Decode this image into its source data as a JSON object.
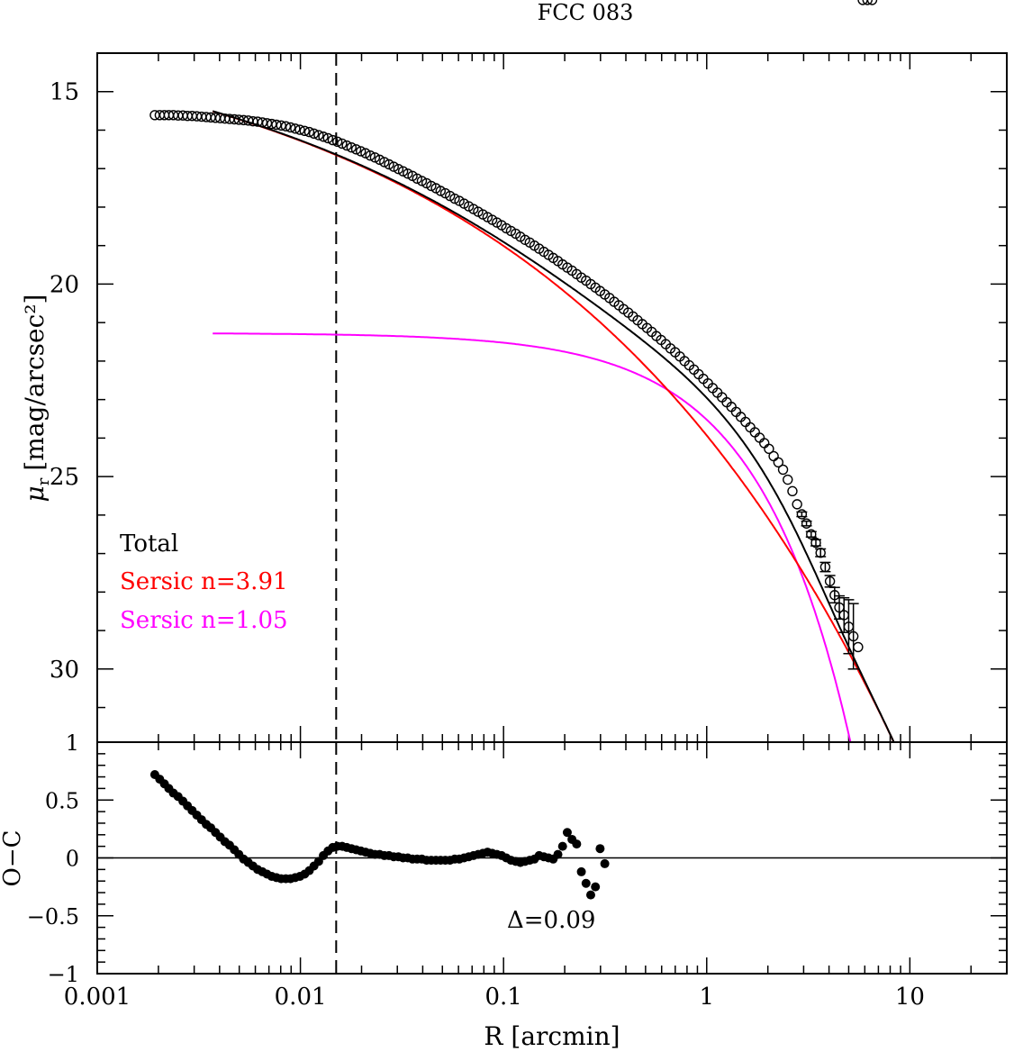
{
  "chart_data": [
    {
      "type": "line",
      "title": "FCC 083",
      "xlabel": "R [arcmin]",
      "ylabel_main": "μ",
      "ylabel_sub": "r",
      "ylabel_rest": "[mag/arcsec²]",
      "xscale": "log",
      "xlim": [
        0.001,
        30
      ],
      "ylim": [
        31.9,
        14.0
      ],
      "y_ticks_major": [
        15,
        20,
        25,
        30
      ],
      "y_tick_labels": [
        "15",
        "20",
        "25",
        "30"
      ],
      "vline_R": 0.015,
      "legend": {
        "placement": "lower-left",
        "entries": [
          {
            "label": "Total",
            "color": "#000000"
          },
          {
            "label": "Sersic n=3.91",
            "color": "#ff0000"
          },
          {
            "label": "Sersic n=1.05",
            "color": "#ff00ff"
          }
        ]
      },
      "series": [
        {
          "name": "Total",
          "color": "#000000",
          "Rmin": 0.0037,
          "Rmax": 10
        },
        {
          "name": "Sersic n=3.91",
          "color": "#ff0000",
          "n": 3.91,
          "mu_e": 21.0,
          "R_e": 0.3,
          "Rmin": 0.0037,
          "Rmax": 10
        },
        {
          "name": "Sersic n=1.05",
          "color": "#ff00ff",
          "n": 1.05,
          "mu_e": 23.2,
          "R_e": 0.85,
          "Rmin": 0.0037,
          "Rmax": 6.8
        }
      ],
      "observed": {
        "name": "data",
        "R": [
          0.00192,
          0.00203,
          0.00214,
          0.00225,
          0.00237,
          0.0025,
          0.00264,
          0.00278,
          0.00293,
          0.00309,
          0.00326,
          0.00344,
          0.00362,
          0.00382,
          0.00403,
          0.00425,
          0.00448,
          0.00473,
          0.00498,
          0.00525,
          0.00554,
          0.00584,
          0.00616,
          0.0065,
          0.00685,
          0.00723,
          0.00762,
          0.00804,
          0.00848,
          0.00894,
          0.00943,
          0.00994,
          0.01049,
          0.01106,
          0.01166,
          0.0123,
          0.01297,
          0.01368,
          0.01442,
          0.01521,
          0.01604,
          0.01692,
          0.01784,
          0.01882,
          0.01984,
          0.02093,
          0.02207,
          0.02328,
          0.02455,
          0.02589,
          0.0273,
          0.02879,
          0.03037,
          0.03202,
          0.03377,
          0.03562,
          0.03756,
          0.03962,
          0.04178,
          0.04406,
          0.04647,
          0.049,
          0.05168,
          0.0545,
          0.05748,
          0.06061,
          0.06393,
          0.06742,
          0.0711,
          0.07498,
          0.07908,
          0.08339,
          0.08795,
          0.09275,
          0.09781,
          0.10315,
          0.10879,
          0.11473,
          0.12099,
          0.1276,
          0.13457,
          0.14191,
          0.14966,
          0.15783,
          0.16645,
          0.17554,
          0.18513,
          0.19523,
          0.20589,
          0.21714,
          0.22899,
          0.2415,
          0.25468,
          0.26859,
          0.28325,
          0.29872,
          0.31503,
          0.33223,
          0.35037,
          0.3695,
          0.38968,
          0.41095,
          0.43339,
          0.45706,
          0.48201,
          0.50833,
          0.53609,
          0.56536,
          0.59623,
          0.62879,
          0.66312,
          0.69933,
          0.73751,
          0.77778,
          0.82025,
          0.86504,
          0.91227,
          0.96208,
          1.0146,
          1.07,
          1.1284,
          1.19,
          1.255,
          1.3235,
          1.3958,
          1.472,
          1.5524,
          1.6372,
          1.7265,
          1.8208,
          1.9202,
          2.0251,
          2.1356,
          2.2522,
          2.3752,
          2.5049,
          2.6417,
          2.7859,
          2.938,
          3.0985,
          3.2676,
          3.446,
          3.6342,
          3.8326,
          4.0418,
          4.2625,
          4.4953,
          4.7407,
          4.9995,
          5.2725,
          5.5604,
          5.864,
          6.1842,
          6.5218
        ],
        "mu": [
          15.61,
          15.61,
          15.61,
          15.61,
          15.61,
          15.62,
          15.62,
          15.63,
          15.63,
          15.64,
          15.65,
          15.66,
          15.67,
          15.68,
          15.69,
          15.7,
          15.71,
          15.72,
          15.73,
          15.74,
          15.75,
          15.77,
          15.78,
          15.8,
          15.82,
          15.84,
          15.86,
          15.88,
          15.9,
          15.93,
          15.96,
          15.99,
          16.02,
          16.05,
          16.09,
          16.13,
          16.17,
          16.21,
          16.26,
          16.3,
          16.35,
          16.4,
          16.45,
          16.5,
          16.55,
          16.6,
          16.66,
          16.71,
          16.77,
          16.83,
          16.89,
          16.95,
          17.01,
          17.07,
          17.13,
          17.19,
          17.26,
          17.32,
          17.38,
          17.45,
          17.51,
          17.58,
          17.64,
          17.71,
          17.78,
          17.84,
          17.91,
          17.98,
          18.05,
          18.12,
          18.19,
          18.26,
          18.33,
          18.4,
          18.47,
          18.55,
          18.62,
          18.69,
          18.77,
          18.85,
          18.92,
          19.0,
          19.08,
          19.16,
          19.24,
          19.32,
          19.4,
          19.49,
          19.57,
          19.65,
          19.74,
          19.83,
          19.91,
          20.0,
          20.09,
          20.18,
          20.27,
          20.36,
          20.46,
          20.55,
          20.65,
          20.74,
          20.84,
          20.94,
          21.04,
          21.14,
          21.24,
          21.35,
          21.45,
          21.56,
          21.67,
          21.77,
          21.88,
          22.0,
          22.11,
          22.22,
          22.34,
          22.46,
          22.58,
          22.7,
          22.82,
          22.94,
          23.07,
          23.19,
          23.32,
          23.45,
          23.58,
          23.72,
          23.85,
          23.99,
          24.13,
          24.28,
          24.47,
          24.63,
          24.82,
          25.08,
          25.38,
          25.72,
          25.98,
          26.22,
          26.5,
          26.72,
          26.98,
          27.35,
          27.72,
          28.08,
          28.4,
          28.6,
          28.9,
          29.15,
          29.43
        ],
        "err": [
          0.03,
          0.03,
          0.03,
          0.03,
          0.03,
          0.03,
          0.03,
          0.03,
          0.03,
          0.03,
          0.03,
          0.03,
          0.03,
          0.03,
          0.03,
          0.03,
          0.03,
          0.03,
          0.03,
          0.03,
          0.03,
          0.03,
          0.03,
          0.03,
          0.03,
          0.03,
          0.03,
          0.03,
          0.03,
          0.03,
          0.03,
          0.03,
          0.03,
          0.03,
          0.03,
          0.03,
          0.03,
          0.03,
          0.03,
          0.03,
          0.03,
          0.03,
          0.03,
          0.03,
          0.03,
          0.03,
          0.03,
          0.03,
          0.03,
          0.03,
          0.03,
          0.03,
          0.03,
          0.03,
          0.03,
          0.03,
          0.03,
          0.03,
          0.03,
          0.03,
          0.03,
          0.03,
          0.03,
          0.03,
          0.03,
          0.03,
          0.03,
          0.03,
          0.03,
          0.03,
          0.03,
          0.03,
          0.03,
          0.03,
          0.03,
          0.03,
          0.03,
          0.03,
          0.03,
          0.03,
          0.03,
          0.03,
          0.03,
          0.03,
          0.03,
          0.03,
          0.03,
          0.03,
          0.03,
          0.03,
          0.03,
          0.03,
          0.03,
          0.03,
          0.03,
          0.03,
          0.03,
          0.03,
          0.03,
          0.03,
          0.03,
          0.03,
          0.03,
          0.03,
          0.03,
          0.03,
          0.03,
          0.03,
          0.03,
          0.03,
          0.03,
          0.03,
          0.03,
          0.03,
          0.03,
          0.03,
          0.03,
          0.03,
          0.03,
          0.03,
          0.03,
          0.03,
          0.03,
          0.03,
          0.03,
          0.03,
          0.03,
          0.03,
          0.03,
          0.03,
          0.03,
          0.03,
          0.03,
          0.03,
          0.04,
          0.04,
          0.05,
          0.05,
          0.06,
          0.06,
          0.07,
          0.08,
          0.1,
          0.12,
          0.15,
          0.2,
          0.3,
          0.45,
          0.7,
          0.85
        ]
      }
    },
    {
      "type": "scatter",
      "title": "",
      "xlabel": "R [arcmin]",
      "ylabel": "O−C",
      "xscale": "log",
      "xlim": [
        0.001,
        30
      ],
      "ylim": [
        -1,
        1
      ],
      "y_ticks_major": [
        -1,
        -0.5,
        0,
        0.5,
        1
      ],
      "y_tick_labels": [
        "−1",
        "−0.5",
        "0",
        "0.5",
        "1"
      ],
      "x_tick_labels": [
        "0.001",
        "0.01",
        "0.1",
        "1",
        "10"
      ],
      "x_tick_values": [
        0.001,
        0.01,
        0.1,
        1,
        10
      ],
      "annotation": "Δ=0.09",
      "residuals": [
        0.72,
        0.68,
        0.64,
        0.6,
        0.56,
        0.53,
        0.49,
        0.45,
        0.41,
        0.37,
        0.33,
        0.29,
        0.26,
        0.22,
        0.18,
        0.14,
        0.11,
        0.07,
        0.03,
        -0.01,
        -0.04,
        -0.07,
        -0.1,
        -0.12,
        -0.14,
        -0.16,
        -0.17,
        -0.18,
        -0.18,
        -0.18,
        -0.17,
        -0.16,
        -0.14,
        -0.11,
        -0.07,
        -0.03,
        0.02,
        0.06,
        0.09,
        0.1,
        0.1,
        0.09,
        0.08,
        0.07,
        0.06,
        0.05,
        0.04,
        0.03,
        0.03,
        0.02,
        0.02,
        0.01,
        0.01,
        0.0,
        0.0,
        -0.01,
        -0.01,
        -0.01,
        -0.02,
        -0.02,
        -0.02,
        -0.02,
        -0.02,
        -0.02,
        -0.01,
        -0.01,
        0.0,
        0.01,
        0.02,
        0.03,
        0.04,
        0.05,
        0.04,
        0.03,
        0.02,
        0.0,
        -0.02,
        -0.03,
        -0.04,
        -0.03,
        -0.02,
        -0.01,
        0.02,
        0.01,
        0.0,
        -0.01,
        0.03,
        0.1,
        0.22,
        0.16,
        0.12,
        -0.12,
        -0.22,
        -0.32,
        -0.25,
        0.08,
        -0.05
      ]
    }
  ]
}
